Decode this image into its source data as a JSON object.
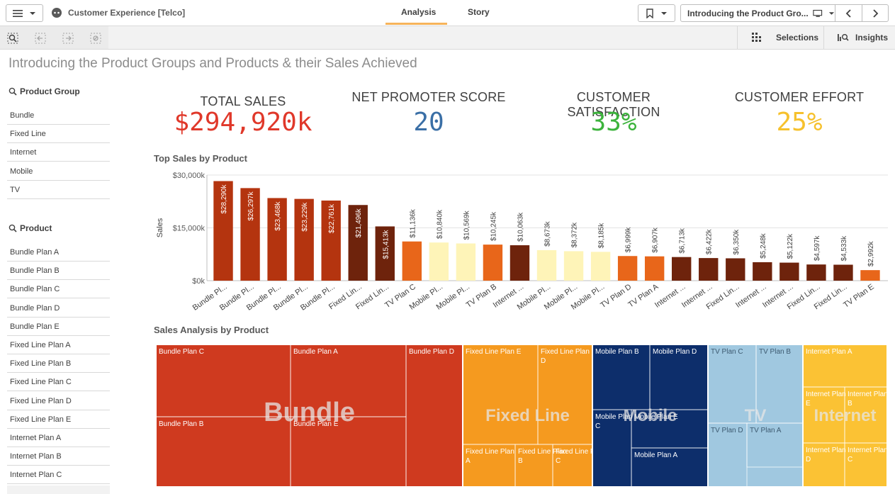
{
  "app": {
    "title": "Customer Experience [Telco]"
  },
  "tabs": [
    {
      "label": "Analysis"
    },
    {
      "label": "Story"
    }
  ],
  "sheet_selector": {
    "title": "Introducing the Product Gro..."
  },
  "toolbar": {
    "selections_label": "Selections",
    "insights_label": "Insights"
  },
  "sheet": {
    "heading": "Introducing the Product Groups and Products & their Sales Achieved"
  },
  "filters": {
    "product_group": {
      "title": "Product Group",
      "items": [
        "Bundle",
        "Fixed Line",
        "Internet",
        "Mobile",
        "TV"
      ]
    },
    "product": {
      "title": "Product",
      "items": [
        "Bundle Plan A",
        "Bundle Plan B",
        "Bundle Plan C",
        "Bundle Plan D",
        "Bundle Plan E",
        "Fixed Line Plan A",
        "Fixed Line Plan B",
        "Fixed Line Plan C",
        "Fixed Line Plan D",
        "Fixed Line Plan E",
        "Internet Plan A",
        "Internet Plan B",
        "Internet Plan C"
      ]
    }
  },
  "kpis": [
    {
      "label": "TOTAL SALES",
      "value": "$294,920k",
      "color": "#e0382a"
    },
    {
      "label": "NET PROMOTER SCORE",
      "value": "20",
      "color": "#3a6fa6"
    },
    {
      "label": "CUSTOMER SATISFACTION",
      "value": "33%",
      "color": "#3cb33c"
    },
    {
      "label": "CUSTOMER EFFORT",
      "value": "25%",
      "color": "#f6c12d"
    }
  ],
  "chart_data": [
    {
      "type": "bar",
      "title": "Top Sales by Product",
      "xlabel": "",
      "ylabel": "Sales",
      "ylim": [
        0,
        30000
      ],
      "yticks": [
        "$0k",
        "$15,000k",
        "$30,000k"
      ],
      "categories": [
        "Bundle Pl...",
        "Bundle Pl...",
        "Bundle Pl...",
        "Bundle Pl...",
        "Bundle Pl...",
        "Fixed Lin...",
        "Fixed Lin...",
        "TV Plan C",
        "Mobile Pl...",
        "Mobile Pl...",
        "TV Plan B",
        "Internet ...",
        "Mobile Pl...",
        "Mobile Pl...",
        "Mobile Pl...",
        "TV Plan D",
        "TV Plan A",
        "Internet ...",
        "Internet ...",
        "Fixed Lin...",
        "Internet ...",
        "Internet ...",
        "Fixed Lin...",
        "Fixed Lin...",
        "TV Plan E"
      ],
      "values": [
        28290,
        26297,
        23468,
        23229,
        22761,
        21496,
        15413,
        11136,
        10840,
        10569,
        10245,
        10063,
        8673,
        8372,
        8185,
        6999,
        6907,
        6713,
        6422,
        6350,
        5248,
        5122,
        4597,
        4533,
        2992
      ],
      "labels": [
        "$28,290k",
        "$26,297k",
        "$23,468k",
        "$23,229k",
        "$22,761k",
        "$21,496k",
        "$15,413k",
        "$11,136k",
        "$10,840k",
        "$10,569k",
        "$10,245k",
        "$10,063k",
        "$8,673k",
        "$8,372k",
        "$8,185k",
        "$6,999k",
        "$6,907k",
        "$6,713k",
        "$6,422k",
        "$6,350k",
        "$5,248k",
        "$5,122k",
        "$4,597k",
        "$4,533k",
        "$2,992k"
      ],
      "colors": [
        "#b4340f",
        "#b4340f",
        "#b4340f",
        "#b4340f",
        "#b4340f",
        "#6e230c",
        "#6e230c",
        "#e8661a",
        "#fef4b8",
        "#fef4b8",
        "#e8661a",
        "#6e230c",
        "#fef4b8",
        "#fef4b8",
        "#fef4b8",
        "#e8661a",
        "#e8661a",
        "#6e230c",
        "#6e230c",
        "#6e230c",
        "#6e230c",
        "#6e230c",
        "#6e230c",
        "#6e230c",
        "#e8661a"
      ]
    },
    {
      "type": "treemap",
      "title": "Sales Analysis by Product",
      "groups": [
        {
          "name": "Bundle",
          "color": "#cf3a1f",
          "leaves": [
            "Bundle Plan C",
            "Bundle Plan A",
            "Bundle Plan D",
            "Bundle Plan B",
            "Bundle Plan E"
          ]
        },
        {
          "name": "Fixed Line",
          "color": "#f59a1f",
          "leaves": [
            "Fixed Line Plan E",
            "Fixed Line Plan D",
            "Fixed Line Plan A",
            "Fixed Line Plan B",
            "Fixed Line Plan C"
          ]
        },
        {
          "name": "Mobile",
          "color": "#0d2e6b",
          "leaves": [
            "Mobile Plan B",
            "Mobile Plan D",
            "Mobile Plan C",
            "Mobile Plan E",
            "Mobile Plan A"
          ]
        },
        {
          "name": "TV",
          "color": "#a0c8e0",
          "leaves": [
            "TV Plan C",
            "TV Plan B",
            "TV Plan D",
            "TV Plan A"
          ]
        },
        {
          "name": "Internet",
          "color": "#fbc234",
          "leaves": [
            "Internet Plan A",
            "Internet Plan E",
            "Internet Plan B",
            "Internet Plan D",
            "Internet Plan C"
          ]
        }
      ]
    }
  ]
}
